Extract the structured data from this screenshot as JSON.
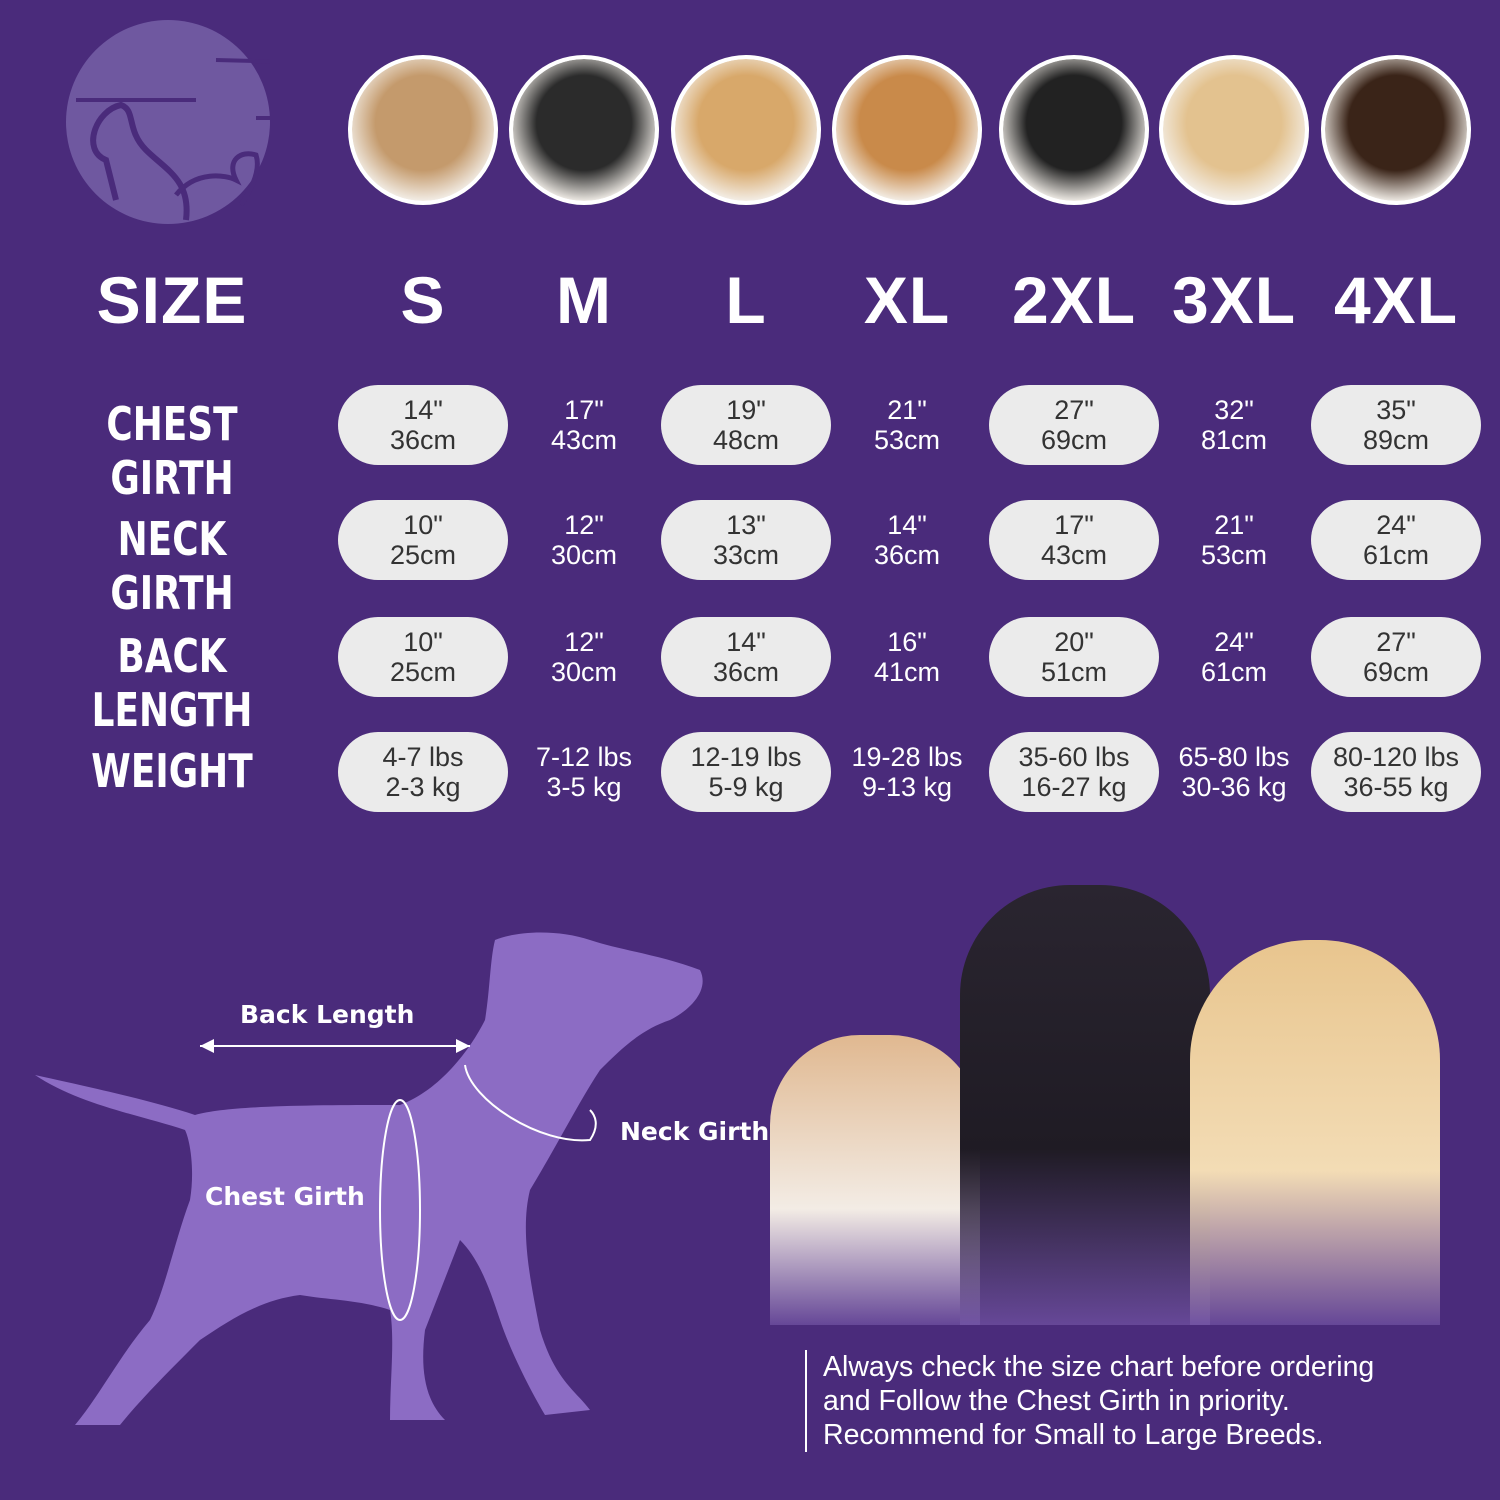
{
  "colors": {
    "background": "#4a2b7b",
    "logo": "#6f58a0",
    "silhouette": "#8c6cc4",
    "pill": "#ebebeb"
  },
  "logo_icon": "dog-cat-logo-icon",
  "breed_photos": [
    "shih-tzu",
    "boston-terrier",
    "cocker-spaniel",
    "beagle",
    "border-collie",
    "labrador",
    "doberman"
  ],
  "table": {
    "header_label": "SIZE",
    "sizes": [
      "S",
      "M",
      "L",
      "XL",
      "2XL",
      "3XL",
      "4XL"
    ],
    "rows": [
      {
        "label": "CHEST GIRTH",
        "values": [
          [
            "14\"",
            "36cm"
          ],
          [
            "17\"",
            "43cm"
          ],
          [
            "19\"",
            "48cm"
          ],
          [
            "21\"",
            "53cm"
          ],
          [
            "27\"",
            "69cm"
          ],
          [
            "32\"",
            "81cm"
          ],
          [
            "35\"",
            "89cm"
          ]
        ]
      },
      {
        "label": "NECK GIRTH",
        "values": [
          [
            "10\"",
            "25cm"
          ],
          [
            "12\"",
            "30cm"
          ],
          [
            "13\"",
            "33cm"
          ],
          [
            "14\"",
            "36cm"
          ],
          [
            "17\"",
            "43cm"
          ],
          [
            "21\"",
            "53cm"
          ],
          [
            "24\"",
            "61cm"
          ]
        ]
      },
      {
        "label": "BACK LENGTH",
        "values": [
          [
            "10\"",
            "25cm"
          ],
          [
            "12\"",
            "30cm"
          ],
          [
            "14\"",
            "36cm"
          ],
          [
            "16\"",
            "41cm"
          ],
          [
            "20\"",
            "51cm"
          ],
          [
            "24\"",
            "61cm"
          ],
          [
            "27\"",
            "69cm"
          ]
        ]
      },
      {
        "label": "WEIGHT",
        "values": [
          [
            "4-7 lbs",
            "2-3 kg"
          ],
          [
            "7-12 lbs",
            "3-5 kg"
          ],
          [
            "12-19 lbs",
            "5-9 kg"
          ],
          [
            "19-28 lbs",
            "9-13 kg"
          ],
          [
            "35-60 lbs",
            "16-27 kg"
          ],
          [
            "65-80 lbs",
            "30-36 kg"
          ],
          [
            "80-120 lbs",
            "36-55 kg"
          ]
        ]
      }
    ]
  },
  "diagram": {
    "back_length": "Back Length",
    "neck_girth": "Neck Girth",
    "chest_girth": "Chest Girth"
  },
  "note": [
    "Always check the size chart before ordering",
    "and Follow the Chest Girth in priority.",
    "Recommend for Small to Large Breeds."
  ]
}
